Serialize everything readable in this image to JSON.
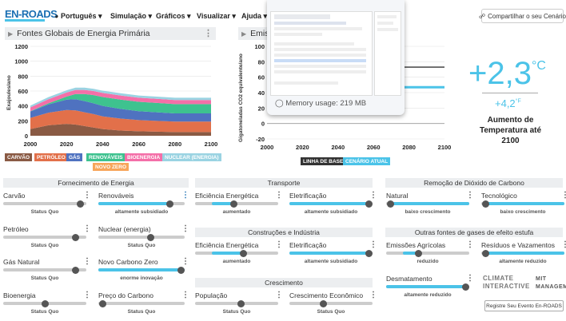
{
  "app": {
    "logo": "EN-ROADS"
  },
  "nav": {
    "language": "Português",
    "items": [
      "Simulação",
      "Gráficos",
      "Visualizar",
      "Ajuda"
    ],
    "share_label": "Compartilhar o seu Cenário"
  },
  "left_chart": {
    "title": "Fontes Globais de Energia Primária",
    "ylabel": "Exajoules/ano",
    "legend": [
      {
        "label": "CARVÃO",
        "color": "#8a5a44"
      },
      {
        "label": "PETRÓLEO",
        "color": "#e2704a"
      },
      {
        "label": "GÁS",
        "color": "#4f72c0"
      },
      {
        "label": "RENOVÁVEIS",
        "color": "#3ec28f"
      },
      {
        "label": "BIOENERGIA",
        "color": "#f46fa8"
      },
      {
        "label": "NUCLEAR (ENERGIA)",
        "color": "#9ad3e2"
      },
      {
        "label": "NOVO ZERO",
        "color": "#f7a55a"
      }
    ]
  },
  "right_chart": {
    "title": "Emissões",
    "ylabel": "Gigatoneladas CO2 equivalente/ano",
    "legend": [
      {
        "label": "LINHA DE BASE",
        "color": "#333333"
      },
      {
        "label": "CENÁRIO ATUAL",
        "color": "#4bc3e8"
      }
    ]
  },
  "chart_data": [
    {
      "type": "area",
      "title": "Fontes Globais de Energia Primária",
      "ylabel": "Exajoules/ano",
      "ylim": [
        0,
        1200
      ],
      "yticks": [
        0,
        200,
        400,
        600,
        800,
        1000,
        1200
      ],
      "x": [
        2000,
        2010,
        2020,
        2025,
        2030,
        2035,
        2040,
        2050,
        2060,
        2070,
        2080,
        2090,
        2100
      ],
      "xticks": [
        2000,
        2020,
        2040,
        2060,
        2080,
        2100
      ],
      "series": [
        {
          "name": "Carvão",
          "values": [
            90,
            140,
            160,
            150,
            130,
            110,
            90,
            70,
            60,
            55,
            50,
            50,
            50
          ]
        },
        {
          "name": "Petróleo",
          "values": [
            150,
            170,
            185,
            190,
            185,
            180,
            170,
            160,
            150,
            145,
            140,
            140,
            140
          ]
        },
        {
          "name": "Gás",
          "values": [
            85,
            110,
            140,
            150,
            150,
            145,
            140,
            130,
            120,
            115,
            110,
            110,
            110
          ]
        },
        {
          "name": "Renováveis",
          "values": [
            5,
            15,
            40,
            70,
            95,
            110,
            120,
            125,
            125,
            125,
            125,
            125,
            125
          ]
        },
        {
          "name": "Bioenergia",
          "values": [
            50,
            55,
            55,
            55,
            55,
            55,
            55,
            55,
            55,
            55,
            55,
            55,
            55
          ]
        },
        {
          "name": "Nuclear (energia)",
          "values": [
            25,
            28,
            30,
            30,
            30,
            30,
            30,
            30,
            30,
            30,
            30,
            30,
            30
          ]
        },
        {
          "name": "Novo Zero",
          "values": [
            0,
            0,
            0,
            0,
            0,
            0,
            0,
            0,
            0,
            0,
            0,
            0,
            0
          ]
        }
      ]
    },
    {
      "type": "line",
      "title": "Emissões",
      "ylabel": "Gigatoneladas CO2 equivalente/ano",
      "ylim": [
        -20,
        100
      ],
      "yticks": [
        -20,
        0,
        20,
        40,
        60,
        80,
        100
      ],
      "xticks": [
        2000,
        2020,
        2040,
        2060,
        2080,
        2100
      ],
      "series": [
        {
          "name": "Linha de Base",
          "x": [
            2075,
            2100
          ],
          "values": [
            73,
            73
          ]
        },
        {
          "name": "Cenário Atual",
          "x": [
            2075,
            2100
          ],
          "values": [
            47,
            47
          ]
        }
      ]
    }
  ],
  "temperature": {
    "value": "+2,3",
    "unit": "°C",
    "secondary": "+4,2",
    "secondary_unit": "°F",
    "caption": "Aumento de Temperatura até 2100"
  },
  "overlay": {
    "memory": "Memory usage: 219 MB"
  },
  "sections": {
    "supply": "Fornecimento de Energia",
    "transport": "Transporte",
    "buildings": "Construções e Indústria",
    "growth": "Crescimento",
    "co2_removal": "Remoção de Dióxido de Carbono",
    "other_gases": "Outras fontes de gases de efeito estufa"
  },
  "sliders": [
    {
      "id": "carvao",
      "label": "Carvão",
      "status": "Status Quo",
      "level": 0.92,
      "filled": false
    },
    {
      "id": "renovaveis",
      "label": "Renováveis",
      "status": "altamente subsidiado",
      "level": 0.82,
      "filled": true
    },
    {
      "id": "petroleo",
      "label": "Petróleo",
      "status": "Status Quo",
      "level": 0.87,
      "filled": false
    },
    {
      "id": "nuclear",
      "label": "Nuclear (energia)",
      "status": "Status Quo",
      "level": 0.6,
      "filled": false
    },
    {
      "id": "gas",
      "label": "Gás Natural",
      "status": "Status Quo",
      "level": 0.87,
      "filled": false
    },
    {
      "id": "novozero",
      "label": "Novo Carbono Zero",
      "status": "enorme inovação",
      "level": 1.0,
      "filled": true
    },
    {
      "id": "bioenergia",
      "label": "Bioenergia",
      "status": "Status Quo",
      "level": 0.5,
      "filled": false
    },
    {
      "id": "precocarbono",
      "label": "Preço do Carbono",
      "status": "Status Quo",
      "level": 0.05,
      "filled": false
    },
    {
      "id": "efic_transp",
      "label": "Eficiência Energética",
      "status": "aumentado",
      "level": 0.46,
      "filled": true
    },
    {
      "id": "eletr_transp",
      "label": "Eletrificação",
      "status": "altamente subsidiado",
      "level": 0.97,
      "filled": true
    },
    {
      "id": "efic_const",
      "label": "Eficiência Energética",
      "status": "aumentado",
      "level": 0.58,
      "filled": true
    },
    {
      "id": "eletr_const",
      "label": "Eletrificação",
      "status": "altamente subsidiado",
      "level": 0.97,
      "filled": true
    },
    {
      "id": "populacao",
      "label": "População",
      "status": "Status Quo",
      "level": 0.55,
      "filled": false
    },
    {
      "id": "cresc_econ",
      "label": "Crescimento Econômico",
      "status": "Status Quo",
      "level": 0.4,
      "filled": false
    },
    {
      "id": "natural",
      "label": "Natural",
      "status": "baixo crescimento",
      "level": 0.05,
      "filled": true
    },
    {
      "id": "tecnologico",
      "label": "Tecnológico",
      "status": "baixo crescimento",
      "level": 0.05,
      "filled": true
    },
    {
      "id": "agricolas",
      "label": "Emissões Agrícolas",
      "status": "reduzido",
      "level": 0.38,
      "filled": true
    },
    {
      "id": "residuos",
      "label": "Resíduos e Vazamentos",
      "status": "altamente reduzido",
      "level": 0.05,
      "filled": true
    },
    {
      "id": "desmatamento",
      "label": "Desmatamento",
      "status": "altamente reduzido",
      "level": 0.97,
      "filled": true
    }
  ],
  "footer": {
    "brand1": "CLIMATE INTERACTIVE",
    "brand2": "MIT MANAGEMENT",
    "register_label": "Registre Seu Evento En-ROADS"
  }
}
